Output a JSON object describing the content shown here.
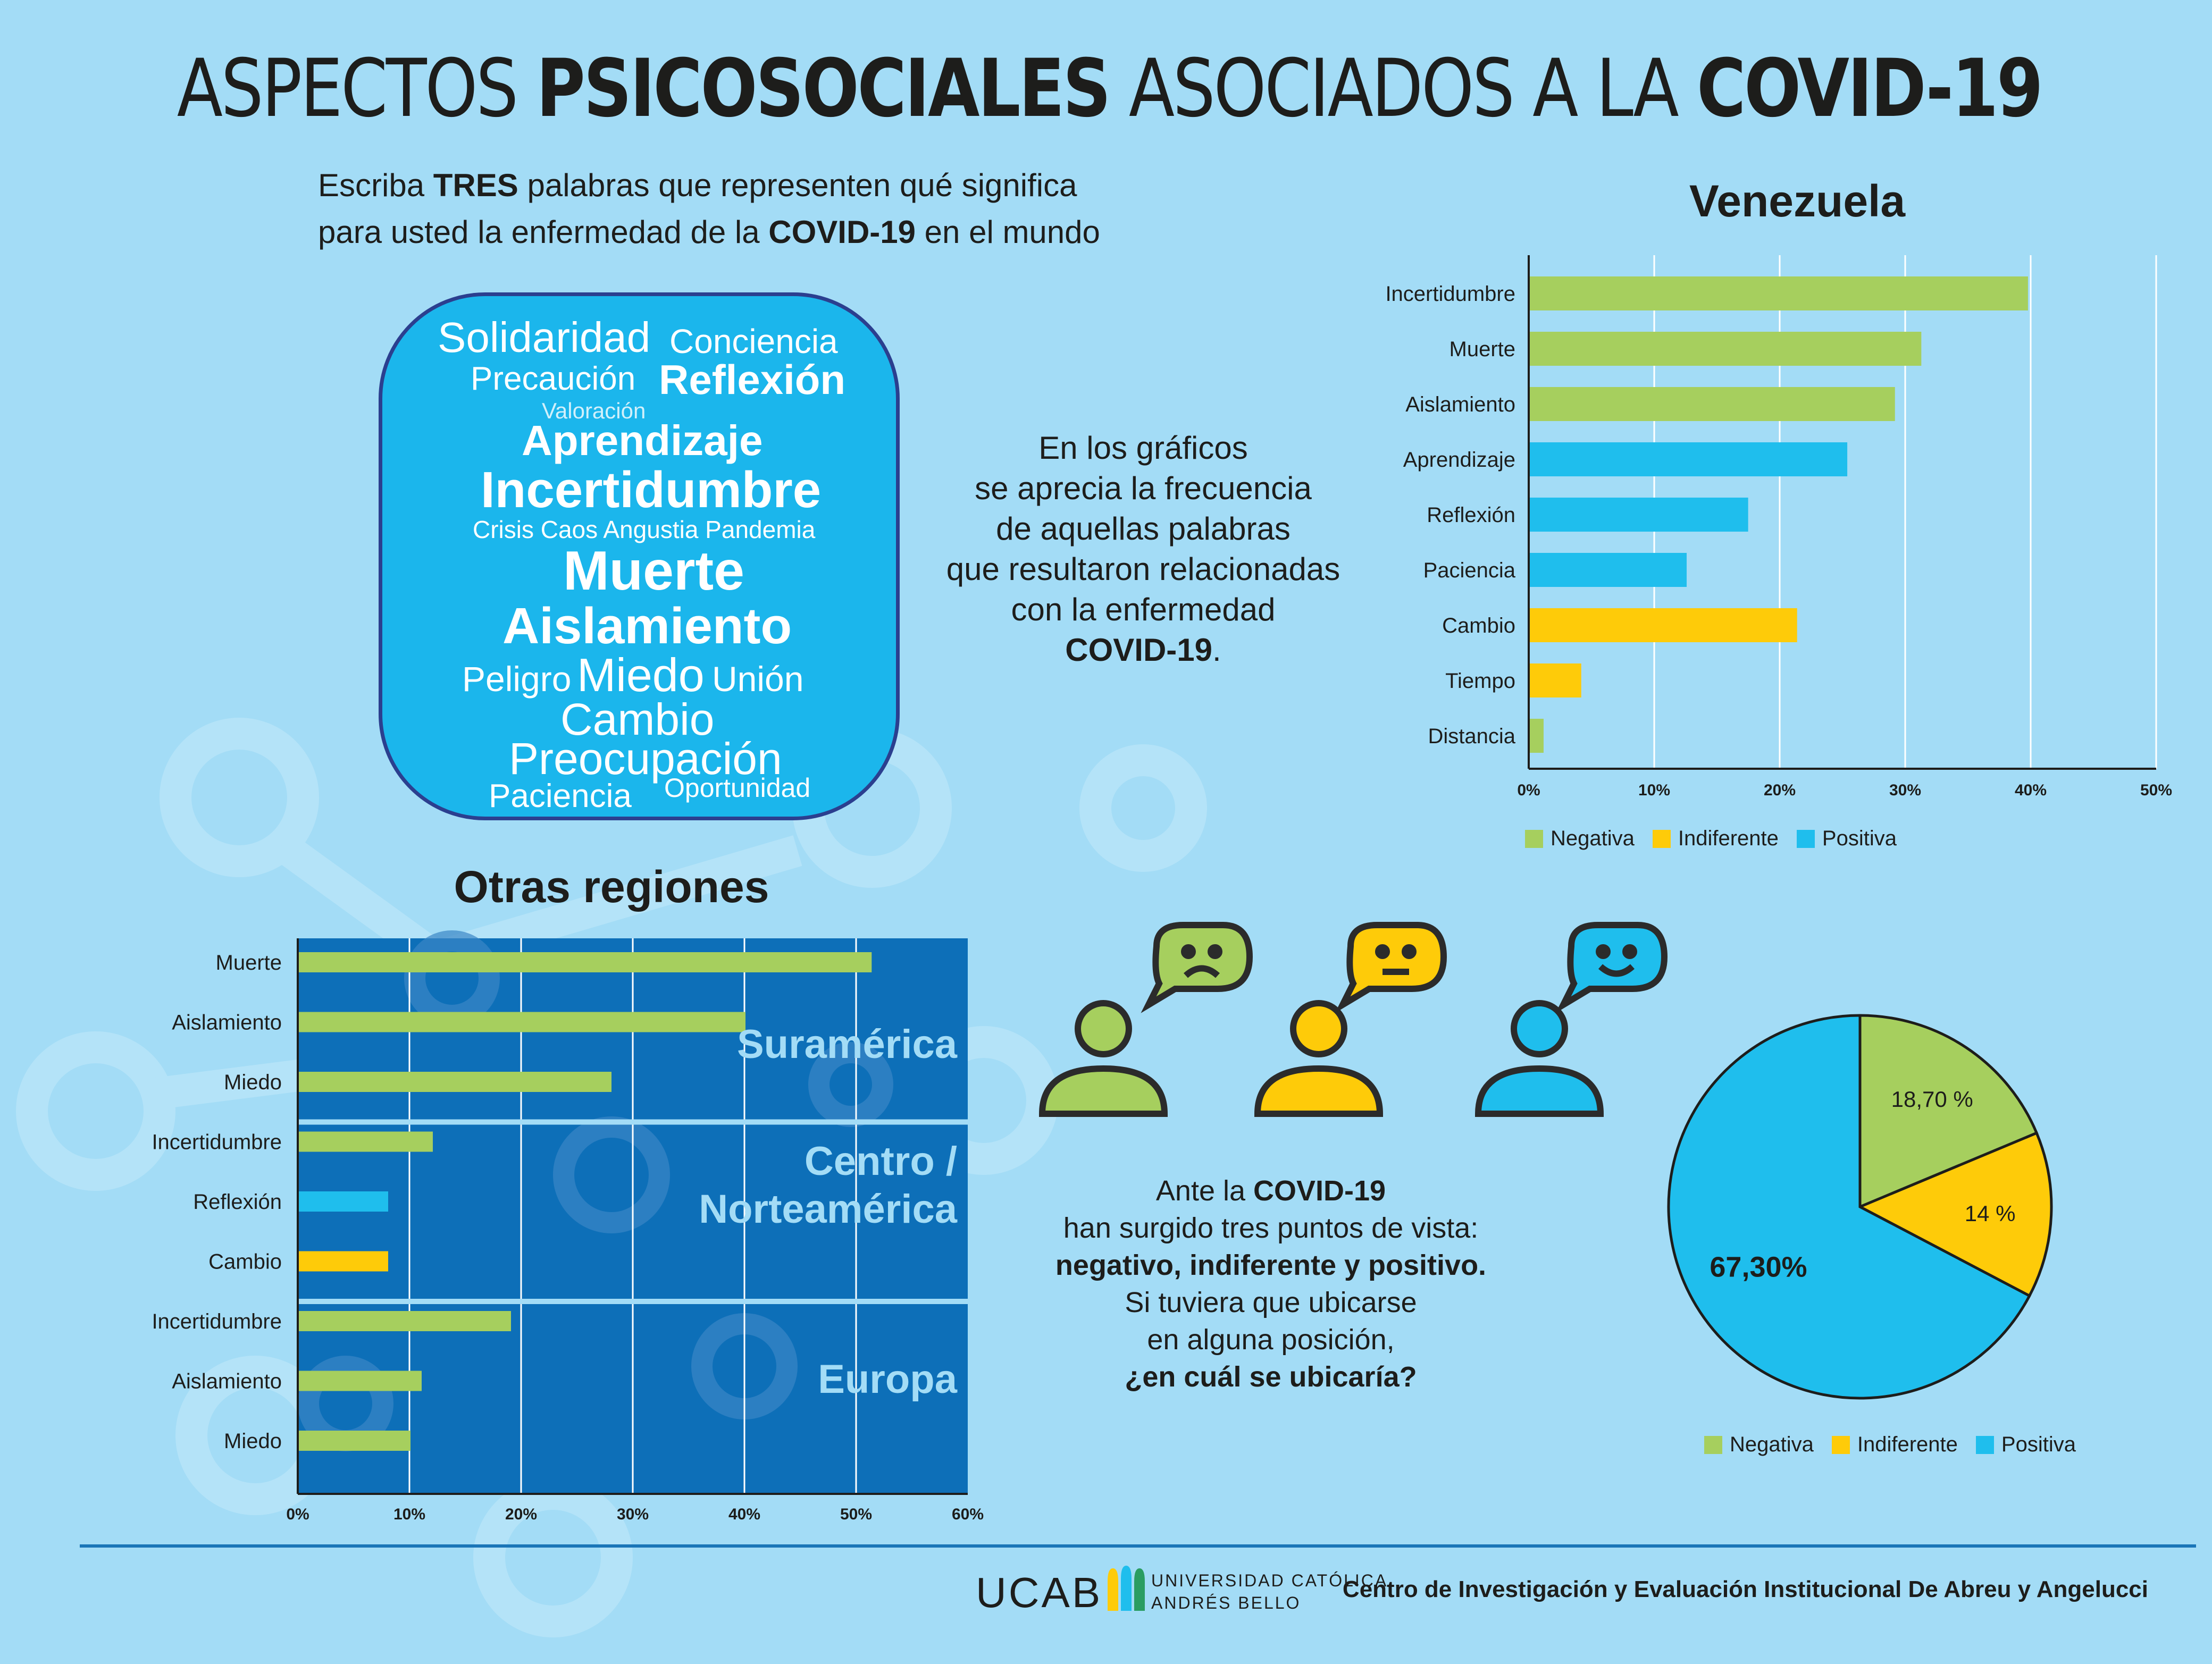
{
  "header": {
    "title_part1": "ASPECTOS ",
    "title_bold1": "PSICOSOCIALES",
    "title_part2": " ASOCIADOS A LA ",
    "title_bold2": "COVID-19"
  },
  "subtitle": {
    "l1a": "Escriba ",
    "l1b": "TRES",
    "l1c": " palabras que representen qué significa",
    "l2a": "para usted la enfermedad de la ",
    "l2b": "COVID-19",
    "l2c": " en el mundo"
  },
  "word_cloud": {
    "solidaridad": "Solidaridad",
    "conciencia": "Conciencia",
    "precaucion": "Precaución",
    "reflexion": "Reflexión",
    "valoracion": "Valoración",
    "aprendizaje": "Aprendizaje",
    "incertidumbre": "Incertidumbre",
    "crisis_line": "Crisis Caos Angustia Pandemia",
    "muerte": "Muerte",
    "aislamiento": "Aislamiento",
    "peligro": "Peligro",
    "miedo": "Miedo",
    "union": "Unión",
    "cambio": "Cambio",
    "preocupacion": "Preocupación",
    "paciencia": "Paciencia",
    "oportunidad": "Oportunidad"
  },
  "note": {
    "l1": "En los gráficos",
    "l2": "se aprecia la frecuencia",
    "l3": "de aquellas palabras",
    "l4": "que resultaron relacionadas",
    "l5": "con la enfermedad",
    "l6a": "COVID-19",
    "l6b": "."
  },
  "views": {
    "l1a": "Ante la ",
    "l1b": "COVID-19",
    "l2": "han surgido tres puntos de vista:",
    "l3": "negativo, indiferente y positivo.",
    "l4": "Si tuviera que ubicarse",
    "l5": "en alguna posición,",
    "l6": "¿en cuál se ubicaría?"
  },
  "colors": {
    "negativa": "#a6cf5e",
    "indiferente": "#fecb09",
    "positiva": "#1fbeed",
    "dark_blue": "#0d6fb8"
  },
  "legend": {
    "negativa": "Negativa",
    "indiferente": "Indiferente",
    "positiva": "Positiva"
  },
  "footer": {
    "ucab": "UCAB",
    "univ1": "UNIVERSIDAD CATÓLICA",
    "univ2": "ANDRÉS BELLO",
    "center": "Centro de Investigación y Evaluación Institucional De Abreu y Angelucci"
  },
  "chart_data": [
    {
      "type": "bar",
      "orientation": "horizontal",
      "title": "Venezuela",
      "categories": [
        "Incertidumbre",
        "Muerte",
        "Aislamiento",
        "Aprendizaje",
        "Reflexión",
        "Paciencia",
        "Cambio",
        "Tiempo",
        "Distancia"
      ],
      "values": [
        39.7,
        31.2,
        29.1,
        25.3,
        17.4,
        12.5,
        21.3,
        4.1,
        1.1
      ],
      "sentiment": [
        "negativa",
        "negativa",
        "negativa",
        "positiva",
        "positiva",
        "positiva",
        "indiferente",
        "indiferente",
        "negativa"
      ],
      "xlim": [
        0,
        50
      ],
      "xticks": [
        "0%",
        "10%",
        "20%",
        "30%",
        "40%",
        "50%"
      ]
    },
    {
      "type": "bar",
      "orientation": "horizontal",
      "title": "Otras regiones",
      "categories": [
        "Muerte",
        "Aislamiento",
        "Miedo",
        "Incertidumbre",
        "Reflexión",
        "Cambio",
        "Incertidumbre",
        "Aislamiento",
        "Miedo"
      ],
      "values": [
        51.3,
        40.0,
        28.0,
        12.0,
        8.0,
        8.0,
        19.0,
        11.0,
        10.0
      ],
      "sentiment": [
        "negativa",
        "negativa",
        "negativa",
        "negativa",
        "positiva",
        "indiferente",
        "negativa",
        "negativa",
        "negativa"
      ],
      "groups": [
        {
          "name": "Suramérica",
          "label_lines": [
            "Suramérica"
          ]
        },
        {
          "name": "Centro / Norteamérica",
          "label_lines": [
            "Centro /",
            "Norteamérica"
          ]
        },
        {
          "name": "Europa",
          "label_lines": [
            "Europa"
          ]
        }
      ],
      "xlim": [
        0,
        60
      ],
      "xticks": [
        "0%",
        "10%",
        "20%",
        "30%",
        "40%",
        "50%",
        "60%"
      ]
    },
    {
      "type": "pie",
      "labels": [
        "Negativa",
        "Indiferente",
        "Positiva"
      ],
      "values": [
        18.7,
        14,
        67.3
      ],
      "value_labels": [
        "18,70 %",
        "14 %",
        "67,30%"
      ]
    }
  ]
}
